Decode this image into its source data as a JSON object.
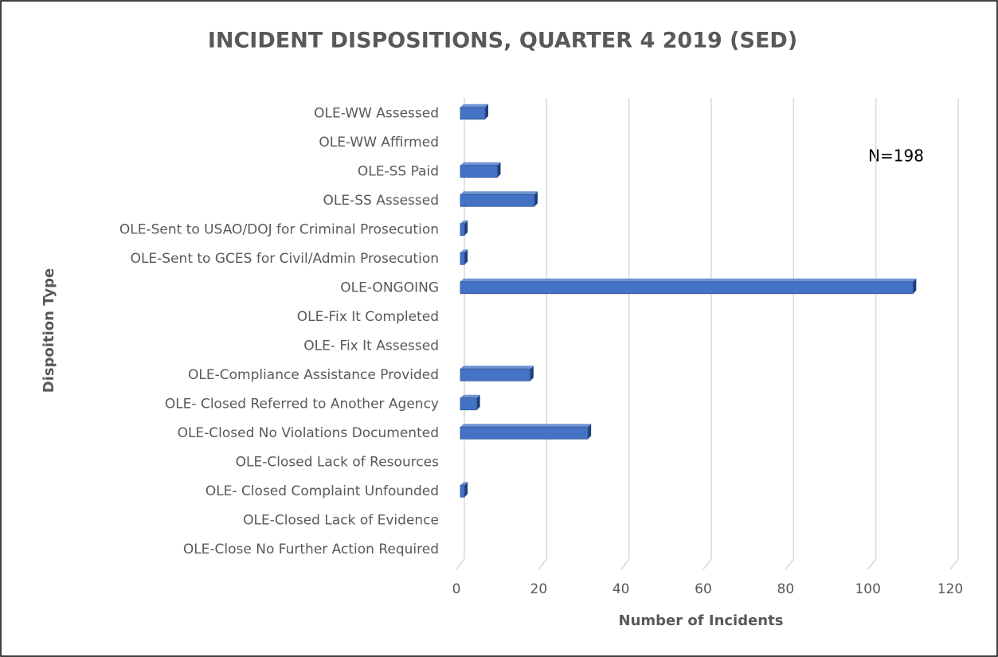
{
  "chart_data": {
    "type": "bar",
    "orientation": "horizontal",
    "title": "INCIDENT DISPOSITIONS, QUARTER 4 2019 (SED)",
    "x_label": "Number of Incidents",
    "y_label": "Dispoition Type",
    "annotation": "N=198",
    "categories": [
      "OLE-WW Assessed",
      "OLE-WW Affirmed",
      "OLE-SS Paid",
      "OLE-SS Assessed",
      "OLE-Sent to USAO/DOJ for Criminal Prosecution",
      "OLE-Sent to GCES for Civil/Admin Prosecution",
      "OLE-ONGOING",
      "OLE-Fix It Completed",
      "OLE- Fix It Assessed",
      "OLE-Compliance Assistance Provided",
      "OLE- Closed Referred to Another Agency",
      "OLE-Closed No Violations Documented",
      "OLE-Closed Lack of Resources",
      "OLE- Closed Complaint Unfounded",
      "OLE-Closed Lack of Evidence",
      "OLE-Close No Further Action Required"
    ],
    "values": [
      6,
      0,
      9,
      18,
      1,
      1,
      110,
      0,
      0,
      17,
      4,
      31,
      0,
      1,
      0,
      0
    ],
    "color": "#4472c4",
    "xlim": [
      0,
      120
    ],
    "xticks": [
      0,
      20,
      40,
      60,
      80,
      100,
      120
    ],
    "grid": true
  }
}
